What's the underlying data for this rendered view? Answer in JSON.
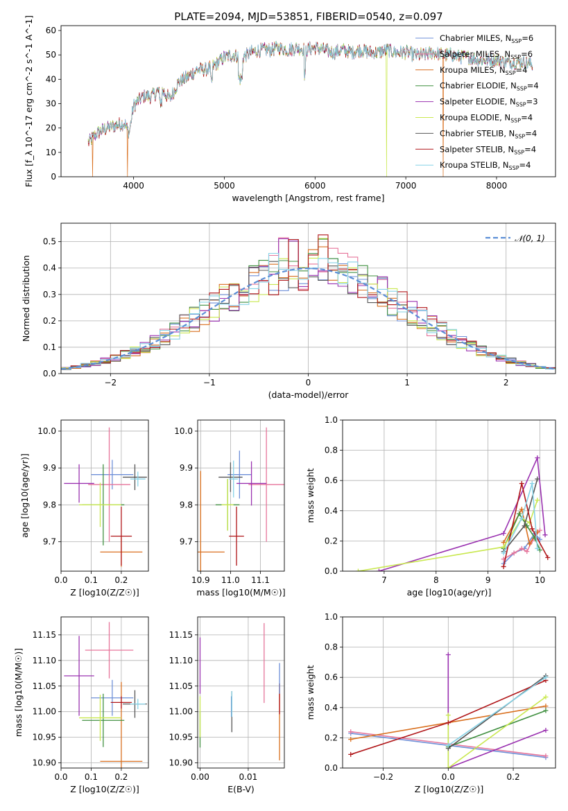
{
  "figure": {
    "title": "PLATE=2094, MJD=53851, FIBERID=0540, z=0.097"
  },
  "colors": {
    "Chabrier MILES": "#6d8fd8",
    "Salpeter MILES": "#e6749a",
    "Kroupa MILES": "#d96f1e",
    "Chabrier ELODIE": "#3f8f3f",
    "Salpeter ELODIE": "#9a31b0",
    "Kroupa ELODIE": "#c9e84f",
    "Chabrier STELIB": "#555555",
    "Salpeter STELIB": "#b01518",
    "Kroupa STELIB": "#86d2e6",
    "normal": "#5b8ed6"
  },
  "chart_data": [
    {
      "id": "spectrum",
      "type": "line",
      "xlabel": "wavelength [Angstrom, rest frame]",
      "ylabel": "Flux [f_λ 10^-17 erg cm^-2 s^-1 A^-1]",
      "xlim": [
        3200,
        8650
      ],
      "ylim": [
        0,
        62
      ],
      "xticks": [
        4000,
        5000,
        6000,
        7000,
        8000
      ],
      "yticks": [
        0,
        10,
        20,
        30,
        40,
        50,
        60
      ],
      "grid": false,
      "legend_position": "top-right",
      "legend": [
        {
          "name": "Chabrier MILES",
          "label": "Chabrier MILES, N",
          "sub": "SSP",
          "tail": "=6"
        },
        {
          "name": "Salpeter MILES",
          "label": "Salpeter MILES, N",
          "sub": "SSP",
          "tail": "=6"
        },
        {
          "name": "Kroupa MILES",
          "label": "Kroupa MILES, N",
          "sub": "SSP",
          "tail": "=4"
        },
        {
          "name": "Chabrier ELODIE",
          "label": "Chabrier ELODIE, N",
          "sub": "SSP",
          "tail": "=4"
        },
        {
          "name": "Salpeter ELODIE",
          "label": "Salpeter ELODIE, N",
          "sub": "SSP",
          "tail": "=3"
        },
        {
          "name": "Kroupa ELODIE",
          "label": "Kroupa ELODIE, N",
          "sub": "SSP",
          "tail": "=4"
        },
        {
          "name": "Chabrier STELIB",
          "label": "Chabrier STELIB, N",
          "sub": "SSP",
          "tail": "=4"
        },
        {
          "name": "Salpeter STELIB",
          "label": "Salpeter STELIB, N",
          "sub": "SSP",
          "tail": "=4"
        },
        {
          "name": "Kroupa STELIB",
          "label": "Kroupa STELIB, N",
          "sub": "SSP",
          "tail": "=4"
        }
      ],
      "continuum": {
        "x": [
          3500,
          3600,
          3700,
          3800,
          3900,
          3950,
          4000,
          4100,
          4200,
          4300,
          4400,
          4500,
          4600,
          4700,
          4800,
          4900,
          5000,
          5100,
          5200,
          5300,
          5400,
          5500,
          5600,
          5700,
          5800,
          5900,
          6000,
          6100,
          6200,
          6300,
          6400,
          6500,
          6600,
          6700,
          6800,
          6900,
          7000,
          7100,
          7200,
          7300,
          7400,
          7500,
          7600,
          7700,
          7800,
          7900,
          8000,
          8100,
          8200,
          8300,
          8400
        ],
        "y": [
          14,
          18,
          20,
          21,
          22,
          18,
          29,
          33,
          33,
          36,
          32,
          39,
          41,
          44,
          44,
          46,
          49,
          50,
          49,
          51,
          52,
          52,
          53,
          52,
          53,
          52,
          53,
          52,
          51,
          52,
          51,
          52,
          51,
          51,
          52,
          51,
          51,
          50,
          50,
          51,
          50,
          50,
          49,
          49,
          48,
          48,
          48,
          47,
          47,
          47,
          46
        ]
      },
      "drops": [
        {
          "model": "Kroupa MILES",
          "x": 3550
        },
        {
          "model": "Kroupa MILES",
          "x": 3930
        },
        {
          "model": "Kroupa ELODIE",
          "x": 6790
        },
        {
          "model": "Kroupa MILES",
          "x": 7410
        }
      ]
    },
    {
      "id": "residual-histogram",
      "type": "bar",
      "xlabel": "(data-model)/error",
      "ylabel": "Normed distribution",
      "xlim": [
        -2.5,
        2.5
      ],
      "ylim": [
        0,
        0.57
      ],
      "xticks": [
        -2,
        -1,
        0,
        1,
        2
      ],
      "yticks": [
        0.0,
        0.1,
        0.2,
        0.3,
        0.4,
        0.5
      ],
      "grid": true,
      "bin_width": 0.1,
      "legend_position": "top-right",
      "reference_curve": {
        "label": "𝒩(0, 1)",
        "mean": 0,
        "sigma": 1
      }
    },
    {
      "id": "age-vs-Z",
      "type": "scatter",
      "xlabel": "Z [log10(Z/Z☉)]",
      "ylabel": "age  [log10(age/yr)]",
      "xlim": [
        0.0,
        0.29
      ],
      "ylim": [
        9.62,
        10.03
      ],
      "xticks": [
        0.0,
        0.1,
        0.2
      ],
      "yticks": [
        9.7,
        9.8,
        9.9,
        10.0
      ],
      "grid": true,
      "points": [
        {
          "model": "Chabrier MILES",
          "x": 0.17,
          "y": 9.882,
          "xerr": 0.07,
          "yerr": 0.04
        },
        {
          "model": "Salpeter MILES",
          "x": 0.16,
          "y": 9.855,
          "xerr": 0.07,
          "yerr": 0.155
        },
        {
          "model": "Kroupa MILES",
          "x": 0.2,
          "y": 9.672,
          "xerr": 0.07,
          "yerr": 0.04
        },
        {
          "model": "Chabrier ELODIE",
          "x": 0.14,
          "y": 9.8,
          "xerr": 0.07,
          "yerr": 0.11
        },
        {
          "model": "Salpeter ELODIE",
          "x": 0.06,
          "y": 9.858,
          "xerr": 0.05,
          "yerr": 0.052
        },
        {
          "model": "Kroupa ELODIE",
          "x": 0.13,
          "y": 9.8,
          "xerr": 0.07,
          "yerr": 0.06
        },
        {
          "model": "Chabrier STELIB",
          "x": 0.245,
          "y": 9.875,
          "xerr": 0.04,
          "yerr": 0.035
        },
        {
          "model": "Salpeter STELIB",
          "x": 0.2,
          "y": 9.715,
          "xerr": 0.035,
          "yerr": 0.08
        },
        {
          "model": "Kroupa STELIB",
          "x": 0.255,
          "y": 9.87,
          "xerr": 0.025,
          "yerr": 0.02
        }
      ]
    },
    {
      "id": "age-vs-mass",
      "type": "scatter",
      "xlabel": "mass [log10(M/M☉)]",
      "ylabel": "",
      "xlim": [
        10.89,
        11.18
      ],
      "ylim": [
        9.62,
        10.03
      ],
      "xticks": [
        10.9,
        11.0,
        11.1
      ],
      "yticks": [
        9.7,
        9.8,
        9.9,
        10.0
      ],
      "grid": true,
      "points": [
        {
          "model": "Chabrier MILES",
          "x": 11.03,
          "y": 9.882,
          "xerr": 0.04,
          "yerr": 0.065
        },
        {
          "model": "Salpeter MILES",
          "x": 11.12,
          "y": 9.855,
          "xerr": 0.06,
          "yerr": 0.155
        },
        {
          "model": "Kroupa MILES",
          "x": 10.9,
          "y": 9.672,
          "xerr": 0.08,
          "yerr": 0.22
        },
        {
          "model": "Chabrier ELODIE",
          "x": 10.99,
          "y": 9.8,
          "xerr": 0.04,
          "yerr": 0.07
        },
        {
          "model": "Salpeter ELODIE",
          "x": 11.07,
          "y": 9.858,
          "xerr": 0.05,
          "yerr": 0.06
        },
        {
          "model": "Kroupa ELODIE",
          "x": 10.99,
          "y": 9.8,
          "xerr": 0.02,
          "yerr": 0.07
        },
        {
          "model": "Chabrier STELIB",
          "x": 11.0,
          "y": 9.875,
          "xerr": 0.04,
          "yerr": 0.04
        },
        {
          "model": "Salpeter STELIB",
          "x": 11.02,
          "y": 9.715,
          "xerr": 0.025,
          "yerr": 0.08
        },
        {
          "model": "Kroupa STELIB",
          "x": 11.01,
          "y": 9.87,
          "xerr": 0.015,
          "yerr": 0.05
        }
      ]
    },
    {
      "id": "mass-weight-vs-age",
      "type": "line",
      "xlabel": "age  [log10(age/yr)]",
      "ylabel": "mass weight",
      "xlim": [
        6.2,
        10.3
      ],
      "ylim": [
        0,
        1.0
      ],
      "xticks": [
        7,
        8,
        9,
        10
      ],
      "yticks": [
        0.0,
        0.2,
        0.4,
        0.6,
        0.8,
        1.0
      ],
      "grid": true,
      "series": [
        {
          "model": "Chabrier MILES",
          "x": [
            9.3,
            9.5,
            9.7,
            9.9,
            10.0
          ],
          "y": [
            0.05,
            0.12,
            0.15,
            0.25,
            0.21
          ]
        },
        {
          "model": "Salpeter MILES",
          "x": [
            9.3,
            9.5,
            9.65,
            9.75,
            9.85,
            10.0
          ],
          "y": [
            0.08,
            0.12,
            0.15,
            0.13,
            0.2,
            0.27
          ]
        },
        {
          "model": "Kroupa MILES",
          "x": [
            9.3,
            9.65,
            9.8,
            9.95
          ],
          "y": [
            0.19,
            0.41,
            0.18,
            0.26
          ]
        },
        {
          "model": "Chabrier ELODIE",
          "x": [
            9.3,
            9.6,
            9.75,
            9.9,
            10.0
          ],
          "y": [
            0.15,
            0.38,
            0.3,
            0.22,
            0.14
          ]
        },
        {
          "model": "Salpeter ELODIE",
          "x": [
            6.9,
            9.3,
            9.95,
            10.1
          ],
          "y": [
            0.0,
            0.25,
            0.75,
            0.24
          ]
        },
        {
          "model": "Kroupa ELODIE",
          "x": [
            6.5,
            9.3,
            9.65,
            9.8,
            9.95
          ],
          "y": [
            0.0,
            0.16,
            0.35,
            0.32,
            0.47
          ]
        },
        {
          "model": "Chabrier STELIB",
          "x": [
            9.3,
            9.7,
            9.95
          ],
          "y": [
            0.13,
            0.3,
            0.61
          ]
        },
        {
          "model": "Salpeter STELIB",
          "x": [
            9.3,
            9.65,
            9.85,
            10.15
          ],
          "y": [
            0.03,
            0.58,
            0.28,
            0.09
          ]
        },
        {
          "model": "Kroupa STELIB",
          "x": [
            9.3,
            9.65,
            9.85,
            9.95
          ],
          "y": [
            0.12,
            0.35,
            0.58,
            0.15
          ]
        }
      ]
    },
    {
      "id": "mass-vs-Z",
      "type": "scatter",
      "xlabel": "Z [log10(Z/Z☉)]",
      "ylabel": "mass [log10(M/M☉)]",
      "xlim": [
        0.0,
        0.29
      ],
      "ylim": [
        10.89,
        11.185
      ],
      "xticks": [
        0.0,
        0.1,
        0.2
      ],
      "yticks": [
        10.9,
        10.95,
        11.0,
        11.05,
        11.1,
        11.15
      ],
      "grid": true,
      "points": [
        {
          "model": "Chabrier MILES",
          "x": 0.17,
          "y": 11.027,
          "xerr": 0.07,
          "yerr": 0.035
        },
        {
          "model": "Salpeter MILES",
          "x": 0.16,
          "y": 11.12,
          "xerr": 0.08,
          "yerr": 0.055
        },
        {
          "model": "Kroupa MILES",
          "x": 0.2,
          "y": 10.903,
          "xerr": 0.07,
          "yerr": 0.155
        },
        {
          "model": "Chabrier ELODIE",
          "x": 0.14,
          "y": 10.983,
          "xerr": 0.07,
          "yerr": 0.052
        },
        {
          "model": "Salpeter ELODIE",
          "x": 0.06,
          "y": 11.07,
          "xerr": 0.05,
          "yerr": 0.078
        },
        {
          "model": "Kroupa ELODIE",
          "x": 0.13,
          "y": 10.988,
          "xerr": 0.07,
          "yerr": 0.045
        },
        {
          "model": "Chabrier STELIB",
          "x": 0.245,
          "y": 11.015,
          "xerr": 0.04,
          "yerr": 0.027
        },
        {
          "model": "Salpeter STELIB",
          "x": 0.2,
          "y": 11.018,
          "xerr": 0.035,
          "yerr": 0.012
        },
        {
          "model": "Kroupa STELIB",
          "x": 0.255,
          "y": 11.015,
          "xerr": 0.025,
          "yerr": 0.01
        }
      ]
    },
    {
      "id": "mass-vs-EBV",
      "type": "scatter",
      "xlabel": "E(B-V)",
      "ylabel": "",
      "xlim": [
        -0.0005,
        0.0175
      ],
      "ylim": [
        10.89,
        11.185
      ],
      "xticks": [
        0.0,
        0.01
      ],
      "yticks": [
        10.9,
        10.95,
        11.0,
        11.05,
        11.1,
        11.15
      ],
      "grid": true,
      "points": [
        {
          "model": "Chabrier MILES",
          "x": 0.0065,
          "y": 11.01,
          "xerr": 0,
          "yerr": 0.02
        },
        {
          "model": "Salpeter MILES",
          "x": 0.0133,
          "y": 11.095,
          "xerr": 0,
          "yerr": 0.078
        },
        {
          "model": "Kroupa MILES",
          "x": 0.0165,
          "y": 10.98,
          "xerr": 0,
          "yerr": 0.075
        },
        {
          "model": "Chabrier ELODIE",
          "x": 0.0,
          "y": 10.965,
          "xerr": 0,
          "yerr": 0.035
        },
        {
          "model": "Salpeter ELODIE",
          "x": 0.0,
          "y": 11.09,
          "xerr": 0,
          "yerr": 0.055
        },
        {
          "model": "Kroupa ELODIE",
          "x": 0.0,
          "y": 10.99,
          "xerr": 0,
          "yerr": 0.04
        },
        {
          "model": "Chabrier STELIB",
          "x": 0.0066,
          "y": 11.0,
          "xerr": 0,
          "yerr": 0.04
        },
        {
          "model": "Salpeter STELIB",
          "x": 0.0165,
          "y": 11.025,
          "xerr": 0,
          "yerr": 0.03
        },
        {
          "model": "Kroupa STELIB",
          "x": 0.0066,
          "y": 11.015,
          "xerr": 0,
          "yerr": 0.025
        },
        {
          "model": "Chabrier MILES",
          "x": 0.0165,
          "y": 11.065,
          "xerr": 0,
          "yerr": 0.03
        }
      ]
    },
    {
      "id": "mass-weight-vs-Z",
      "type": "line",
      "xlabel": "Z [log10(Z/Z☉)]",
      "ylabel": "mass weight",
      "xlim": [
        -0.325,
        0.33
      ],
      "ylim": [
        0,
        1.0
      ],
      "xticks": [
        -0.2,
        0.0,
        0.2
      ],
      "yticks": [
        0.0,
        0.2,
        0.4,
        0.6,
        0.8,
        1.0
      ],
      "grid": true,
      "series": [
        {
          "model": "Chabrier MILES",
          "x": [
            -0.3,
            0.3
          ],
          "y": [
            0.23,
            0.07
          ]
        },
        {
          "model": "Salpeter MILES",
          "x": [
            -0.3,
            0.3
          ],
          "y": [
            0.24,
            0.08
          ]
        },
        {
          "model": "Kroupa MILES",
          "x": [
            -0.3,
            0.0,
            0.3
          ],
          "y": [
            0.19,
            0.3,
            0.41
          ]
        },
        {
          "model": "Chabrier ELODIE",
          "x": [
            0.0,
            0.3
          ],
          "y": [
            0.14,
            0.38
          ]
        },
        {
          "model": "Salpeter ELODIE",
          "x": [
            0.0,
            0.0,
            0.3
          ],
          "y": [
            0.75,
            0.0,
            0.25
          ]
        },
        {
          "model": "Kroupa ELODIE",
          "x": [
            0.0,
            0.0,
            0.3
          ],
          "y": [
            0.35,
            0.0,
            0.47
          ]
        },
        {
          "model": "Chabrier STELIB",
          "x": [
            0.0,
            0.3
          ],
          "y": [
            0.13,
            0.61
          ]
        },
        {
          "model": "Salpeter STELIB",
          "x": [
            -0.3,
            0.0,
            0.3
          ],
          "y": [
            0.09,
            0.3,
            0.58
          ]
        },
        {
          "model": "Kroupa STELIB",
          "x": [
            0.0,
            0.3
          ],
          "y": [
            0.15,
            0.6
          ]
        }
      ]
    }
  ]
}
